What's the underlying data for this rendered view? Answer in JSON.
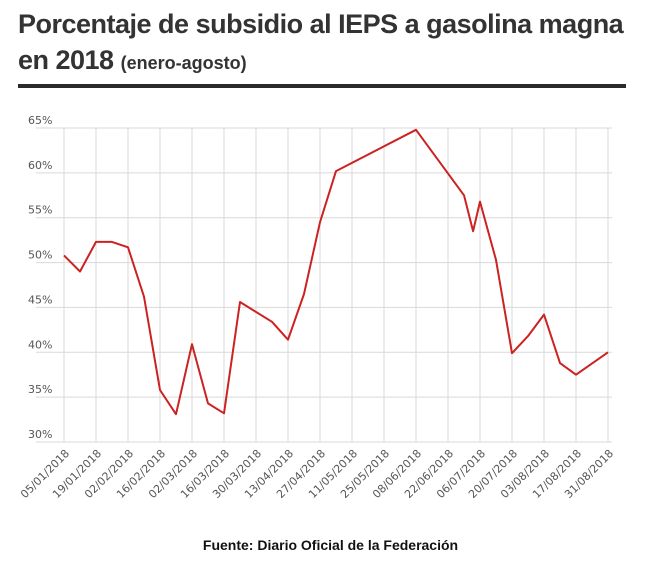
{
  "title": {
    "main": "Porcentaje de subsidio al IEPS a gasolina magna en 2018",
    "sub": "(enero-agosto)"
  },
  "source": "Fuente: Diario Oficial de la Federación",
  "colors": {
    "line": "#cc2222",
    "grid": "#d9d9d9",
    "text": "#555555"
  },
  "chart_data": {
    "type": "line",
    "x_tick_labels": [
      "05/01/2018",
      "19/01/2018",
      "02/02/2018",
      "16/02/2018",
      "02/03/2018",
      "16/03/2018",
      "30/03/2018",
      "13/04/2018",
      "27/04/2018",
      "11/05/2018",
      "25/05/2018",
      "08/06/2018",
      "22/06/2018",
      "06/07/2018",
      "20/07/2018",
      "03/08/2018",
      "17/08/2018",
      "31/08/2018"
    ],
    "y_tick_labels": [
      "30%",
      "35%",
      "40%",
      "45%",
      "50%",
      "55%",
      "60%",
      "65%"
    ],
    "ylim": [
      30,
      65
    ],
    "grid": true,
    "series": [
      {
        "x": [
          "05/01/2018",
          "12/01/2018",
          "19/01/2018",
          "26/01/2018",
          "02/02/2018",
          "09/02/2018",
          "16/02/2018",
          "23/02/2018",
          "02/03/2018",
          "09/03/2018",
          "16/03/2018",
          "23/03/2018",
          "06/04/2018",
          "13/04/2018",
          "20/04/2018",
          "27/04/2018",
          "04/05/2018",
          "08/06/2018",
          "29/06/2018",
          "03/07/2018",
          "06/07/2018",
          "13/07/2018",
          "20/07/2018",
          "27/07/2018",
          "03/08/2018",
          "10/08/2018",
          "17/08/2018",
          "31/08/2018"
        ],
        "values": [
          50.8,
          49.0,
          52.3,
          52.3,
          51.7,
          46.2,
          35.8,
          33.1,
          40.9,
          34.3,
          33.2,
          45.6,
          43.4,
          41.4,
          46.5,
          54.5,
          60.2,
          64.8,
          57.5,
          53.5,
          56.8,
          50.3,
          39.9,
          41.8,
          44.2,
          38.8,
          37.5,
          40.0
        ]
      }
    ]
  }
}
